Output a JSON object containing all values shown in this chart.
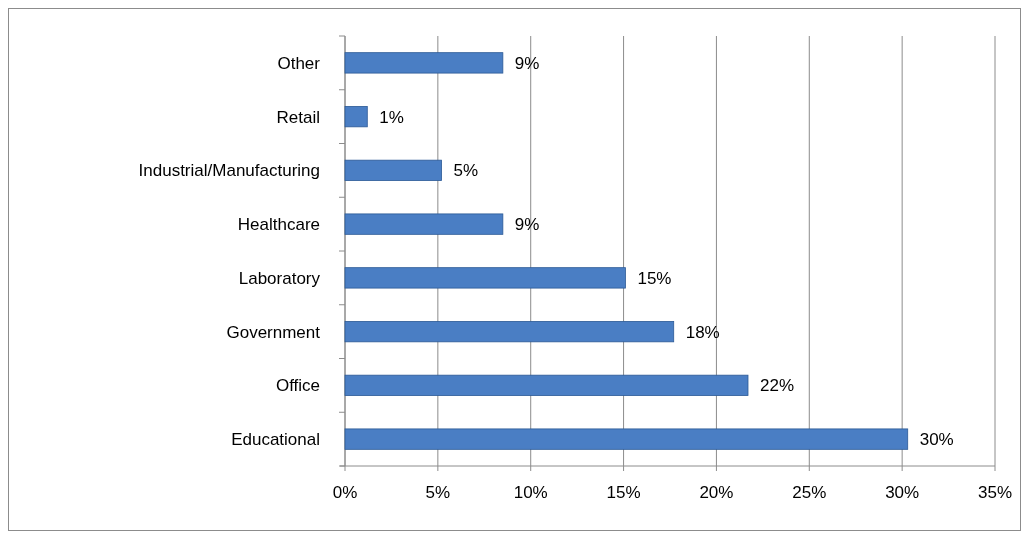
{
  "chart_data": {
    "type": "bar",
    "orientation": "horizontal",
    "categories": [
      "Other",
      "Retail",
      "Industrial/Manufacturing",
      "Healthcare",
      "Laboratory",
      "Government",
      "Office",
      "Educational"
    ],
    "values": [
      8.5,
      1.2,
      5.2,
      8.5,
      15.1,
      17.7,
      21.7,
      30.3
    ],
    "value_labels": [
      "9%",
      "1%",
      "5%",
      "9%",
      "15%",
      "18%",
      "22%",
      "30%"
    ],
    "color": "#4a7ec4",
    "xlim": [
      0,
      35
    ],
    "xticks": [
      {
        "value": 0,
        "label": "0%"
      },
      {
        "value": 5,
        "label": "5%"
      },
      {
        "value": 10,
        "label": "10%"
      },
      {
        "value": 15,
        "label": "15%"
      },
      {
        "value": 20,
        "label": "20%"
      },
      {
        "value": 25,
        "label": "25%"
      },
      {
        "value": 30,
        "label": "30%"
      },
      {
        "value": 35,
        "label": "35%"
      }
    ],
    "grid": "x"
  }
}
